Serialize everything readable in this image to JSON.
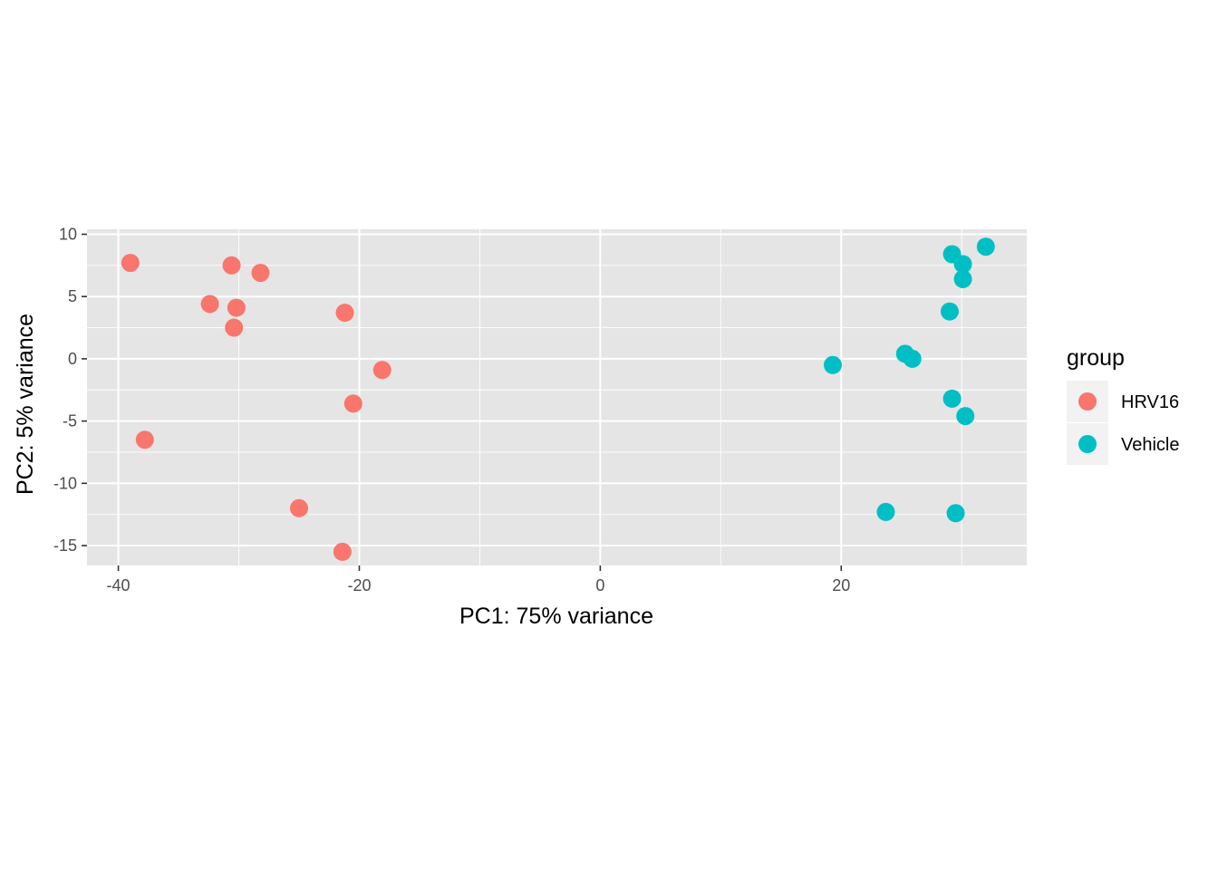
{
  "chart_data": {
    "type": "scatter",
    "xlabel": "PC1: 75% variance",
    "ylabel": "PC2: 5% variance",
    "xlim": [
      -42.6,
      35.4
    ],
    "ylim": [
      -16.6,
      10.4
    ],
    "x_ticks": [
      -40,
      -20,
      0,
      20
    ],
    "x_tick_labels": [
      "-40",
      "-20",
      "0",
      "20"
    ],
    "y_ticks": [
      10,
      5,
      0,
      -5,
      -10,
      -15
    ],
    "y_tick_labels": [
      "10",
      "5",
      "0",
      "-5",
      "-10",
      "-15"
    ],
    "grid": true,
    "background": "#e5e5e5",
    "legend": {
      "title": "group",
      "position": "right"
    },
    "series": [
      {
        "name": "HRV16",
        "color": "#f8766d",
        "points": [
          {
            "x": -39.0,
            "y": 7.7
          },
          {
            "x": -37.8,
            "y": -6.5
          },
          {
            "x": -32.4,
            "y": 4.4
          },
          {
            "x": -30.6,
            "y": 7.5
          },
          {
            "x": -30.2,
            "y": 4.1
          },
          {
            "x": -30.4,
            "y": 2.5
          },
          {
            "x": -28.2,
            "y": 6.9
          },
          {
            "x": -25.0,
            "y": -12.0
          },
          {
            "x": -21.2,
            "y": 3.7
          },
          {
            "x": -21.4,
            "y": -15.5
          },
          {
            "x": -20.5,
            "y": -3.6
          },
          {
            "x": -18.1,
            "y": -0.9
          }
        ]
      },
      {
        "name": "Vehicle",
        "color": "#00bfc4",
        "points": [
          {
            "x": 19.3,
            "y": -0.5
          },
          {
            "x": 23.7,
            "y": -12.3
          },
          {
            "x": 25.3,
            "y": 0.4
          },
          {
            "x": 25.9,
            "y": 0.0
          },
          {
            "x": 29.0,
            "y": 3.8
          },
          {
            "x": 29.2,
            "y": 8.4
          },
          {
            "x": 29.2,
            "y": -3.2
          },
          {
            "x": 29.5,
            "y": -12.4
          },
          {
            "x": 30.1,
            "y": 7.6
          },
          {
            "x": 30.1,
            "y": 6.4
          },
          {
            "x": 30.3,
            "y": -4.6
          },
          {
            "x": 32.0,
            "y": 9.0
          }
        ]
      }
    ]
  }
}
